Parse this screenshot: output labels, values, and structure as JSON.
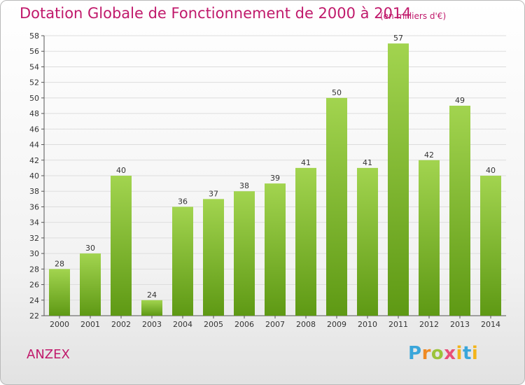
{
  "header": {
    "title": "Dotation Globale de Fonctionnement de 2000 à 2014",
    "unit": "(en milliers d'€)"
  },
  "footer": {
    "commune": "ANZEX",
    "logo_text": "Proxiti"
  },
  "colors": {
    "title": "#c0196b",
    "bar_light": "#9fd24e",
    "bar_dark": "#5f9a16",
    "grid": "#dddddd"
  },
  "chart_data": {
    "type": "bar",
    "title": "Dotation Globale de Fonctionnement de 2000 à 2014",
    "subtitle": "(en milliers d'€)",
    "categories": [
      "2000",
      "2001",
      "2002",
      "2003",
      "2004",
      "2005",
      "2006",
      "2007",
      "2008",
      "2009",
      "2010",
      "2011",
      "2012",
      "2013",
      "2014"
    ],
    "values": [
      28,
      30,
      40,
      24,
      36,
      37,
      38,
      39,
      41,
      50,
      41,
      57,
      42,
      49,
      40
    ],
    "ylim": [
      22,
      58
    ],
    "yticks": [
      22,
      24,
      26,
      28,
      30,
      32,
      34,
      36,
      38,
      40,
      42,
      44,
      46,
      48,
      50,
      52,
      54,
      56,
      58
    ],
    "grid": true,
    "xlabel": "",
    "ylabel": ""
  }
}
